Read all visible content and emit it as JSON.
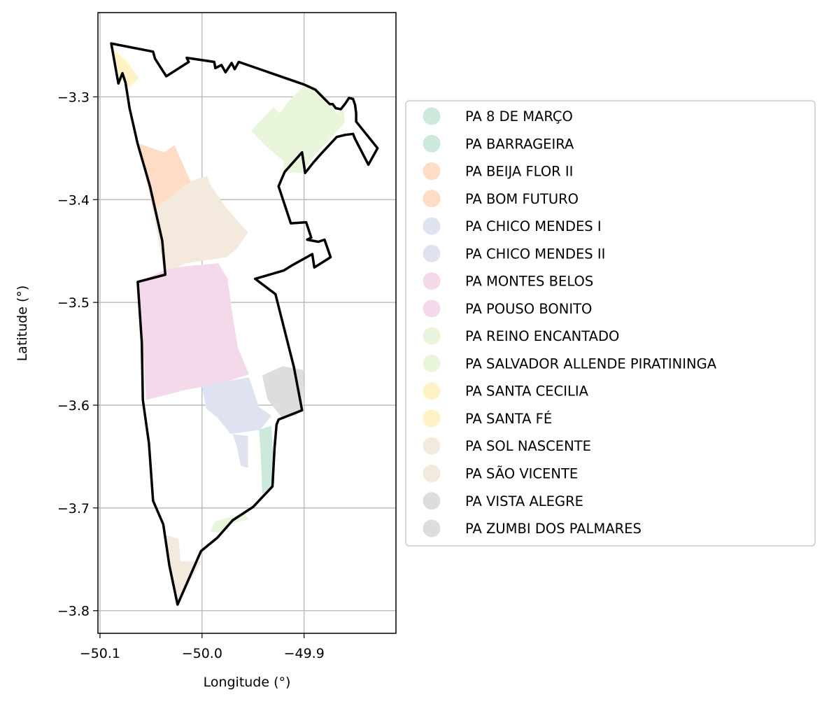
{
  "chart_data": {
    "type": "map",
    "xlabel": "Longitude (°)",
    "ylabel": "Latitude (°)",
    "xlim": [
      -50.102,
      -49.81
    ],
    "ylim": [
      -3.822,
      -3.218
    ],
    "x_ticks": [
      -50.1,
      -50.0,
      -49.9
    ],
    "x_tick_labels": [
      "−50.1",
      "−50.0",
      "−49.9"
    ],
    "y_ticks": [
      -3.3,
      -3.4,
      -3.5,
      -3.6,
      -3.7,
      -3.8
    ],
    "y_tick_labels": [
      "−3.3",
      "−3.4",
      "−3.5",
      "−3.6",
      "−3.7",
      "−3.8"
    ],
    "grid": true,
    "legend_position": "right",
    "legend": [
      {
        "label": "PA 8 DE MARÇO",
        "color": "#cce9dc"
      },
      {
        "label": "PA BARRAGEIRA",
        "color": "#cce9dc"
      },
      {
        "label": "PA BEIJA FLOR II",
        "color": "#fedcc6"
      },
      {
        "label": "PA BOM FUTURO",
        "color": "#fedcc6"
      },
      {
        "label": "PA CHICO MENDES I",
        "color": "#dfe3f1"
      },
      {
        "label": "PA CHICO MENDES II",
        "color": "#dfe3f1"
      },
      {
        "label": "PA MONTES BELOS",
        "color": "#f4d9eb"
      },
      {
        "label": "PA POUSO BONITO",
        "color": "#f4d9eb"
      },
      {
        "label": "PA REINO ENCANTADO",
        "color": "#eaf6dc"
      },
      {
        "label": "PA SALVADOR ALLENDE PIRATININGA",
        "color": "#eaf6dc"
      },
      {
        "label": "PA SANTA CECILIA",
        "color": "#fff3c6"
      },
      {
        "label": "PA SANTA FÉ",
        "color": "#fff3c6"
      },
      {
        "label": "PA SOL NASCENTE",
        "color": "#f3e9dc"
      },
      {
        "label": "PA SÃO VICENTE",
        "color": "#f3e9dc"
      },
      {
        "label": "PA VISTA ALEGRE",
        "color": "#dddddd"
      },
      {
        "label": "PA ZUMBI DOS PALMARES",
        "color": "#dddddd"
      }
    ],
    "boundary": [
      [
        -50.089,
        -3.248
      ],
      [
        -50.048,
        -3.256
      ],
      [
        -50.046,
        -3.263
      ],
      [
        -50.035,
        -3.28
      ],
      [
        -50.013,
        -3.266
      ],
      [
        -50.015,
        -3.262
      ],
      [
        -49.988,
        -3.266
      ],
      [
        -49.987,
        -3.272
      ],
      [
        -49.981,
        -3.269
      ],
      [
        -49.977,
        -3.276
      ],
      [
        -49.971,
        -3.267
      ],
      [
        -49.968,
        -3.273
      ],
      [
        -49.964,
        -3.266
      ],
      [
        -49.9,
        -3.288
      ],
      [
        -49.889,
        -3.293
      ],
      [
        -49.875,
        -3.307
      ],
      [
        -49.872,
        -3.307
      ],
      [
        -49.869,
        -3.311
      ],
      [
        -49.864,
        -3.312
      ],
      [
        -49.86,
        -3.307
      ],
      [
        -49.856,
        -3.301
      ],
      [
        -49.852,
        -3.302
      ],
      [
        -49.85,
        -3.308
      ],
      [
        -49.849,
        -3.316
      ],
      [
        -49.849,
        -3.324
      ],
      [
        -49.828,
        -3.35
      ],
      [
        -49.837,
        -3.366
      ],
      [
        -49.85,
        -3.341
      ],
      [
        -49.852,
        -3.336
      ],
      [
        -49.86,
        -3.337
      ],
      [
        -49.868,
        -3.339
      ],
      [
        -49.883,
        -3.355
      ],
      [
        -49.891,
        -3.364
      ],
      [
        -49.899,
        -3.374
      ],
      [
        -49.902,
        -3.354
      ],
      [
        -49.919,
        -3.373
      ],
      [
        -49.925,
        -3.387
      ],
      [
        -49.913,
        -3.423
      ],
      [
        -49.898,
        -3.422
      ],
      [
        -49.893,
        -3.437
      ],
      [
        -49.897,
        -3.439
      ],
      [
        -49.886,
        -3.441
      ],
      [
        -49.88,
        -3.439
      ],
      [
        -49.874,
        -3.456
      ],
      [
        -49.89,
        -3.466
      ],
      [
        -49.892,
        -3.453
      ],
      [
        -49.912,
        -3.464
      ],
      [
        -49.92,
        -3.469
      ],
      [
        -49.948,
        -3.477
      ],
      [
        -49.928,
        -3.492
      ],
      [
        -49.91,
        -3.563
      ],
      [
        -49.902,
        -3.605
      ],
      [
        -49.925,
        -3.614
      ],
      [
        -49.927,
        -3.619
      ],
      [
        -49.929,
        -3.642
      ],
      [
        -49.931,
        -3.679
      ],
      [
        -49.95,
        -3.699
      ],
      [
        -49.97,
        -3.712
      ],
      [
        -49.985,
        -3.729
      ],
      [
        -50.001,
        -3.742
      ],
      [
        -50.024,
        -3.794
      ],
      [
        -50.032,
        -3.756
      ],
      [
        -50.038,
        -3.716
      ],
      [
        -50.048,
        -3.693
      ],
      [
        -50.052,
        -3.637
      ],
      [
        -50.058,
        -3.595
      ],
      [
        -50.059,
        -3.539
      ],
      [
        -50.063,
        -3.48
      ],
      [
        -50.036,
        -3.473
      ],
      [
        -50.039,
        -3.44
      ],
      [
        -50.051,
        -3.387
      ],
      [
        -50.063,
        -3.346
      ],
      [
        -50.071,
        -3.311
      ],
      [
        -50.075,
        -3.286
      ],
      [
        -50.078,
        -3.277
      ],
      [
        -50.082,
        -3.287
      ],
      [
        -50.089,
        -3.248
      ]
    ],
    "regions": [
      {
        "label": "PA SANTA FÉ",
        "color": "#fff3c6",
        "coords": [
          [
            -50.087,
            -3.254
          ],
          [
            -50.073,
            -3.266
          ],
          [
            -50.062,
            -3.282
          ],
          [
            -50.072,
            -3.291
          ],
          [
            -50.081,
            -3.282
          ],
          [
            -50.087,
            -3.254
          ]
        ]
      },
      {
        "label": "PA SALVADOR ALLENDE PIRATININGA",
        "color": "#eaf6dc",
        "coords": [
          [
            -49.899,
            -3.287
          ],
          [
            -49.888,
            -3.291
          ],
          [
            -49.874,
            -3.306
          ],
          [
            -49.868,
            -3.316
          ],
          [
            -49.862,
            -3.311
          ],
          [
            -49.861,
            -3.314
          ],
          [
            -49.86,
            -3.325
          ],
          [
            -49.872,
            -3.338
          ],
          [
            -49.89,
            -3.357
          ],
          [
            -49.902,
            -3.374
          ],
          [
            -49.92,
            -3.373
          ],
          [
            -49.92,
            -3.363
          ],
          [
            -49.935,
            -3.35
          ],
          [
            -49.952,
            -3.333
          ],
          [
            -49.93,
            -3.31
          ],
          [
            -49.924,
            -3.316
          ],
          [
            -49.916,
            -3.305
          ],
          [
            -49.904,
            -3.293
          ],
          [
            -49.899,
            -3.287
          ]
        ]
      },
      {
        "label": "PA BOM FUTURO",
        "color": "#fedcc6",
        "coords": [
          [
            -50.063,
            -3.345
          ],
          [
            -50.037,
            -3.354
          ],
          [
            -50.027,
            -3.347
          ],
          [
            -50.01,
            -3.385
          ],
          [
            -50.046,
            -3.42
          ],
          [
            -50.052,
            -3.392
          ],
          [
            -50.063,
            -3.345
          ]
        ]
      },
      {
        "label": "PA SOL NASCENTE",
        "color": "#f3e9dc",
        "coords": [
          [
            -50.048,
            -3.41
          ],
          [
            -50.011,
            -3.382
          ],
          [
            -49.995,
            -3.377
          ],
          [
            -49.991,
            -3.387
          ],
          [
            -49.977,
            -3.407
          ],
          [
            -49.955,
            -3.432
          ],
          [
            -49.966,
            -3.448
          ],
          [
            -49.976,
            -3.456
          ],
          [
            -50.016,
            -3.462
          ],
          [
            -50.037,
            -3.472
          ],
          [
            -50.048,
            -3.41
          ]
        ]
      },
      {
        "label": "PA MONTES BELOS",
        "color": "#f4d9eb",
        "coords": [
          [
            -50.062,
            -3.48
          ],
          [
            -50.038,
            -3.469
          ],
          [
            -50.019,
            -3.465
          ],
          [
            -49.984,
            -3.462
          ],
          [
            -49.975,
            -3.477
          ],
          [
            -49.97,
            -3.513
          ],
          [
            -49.965,
            -3.544
          ],
          [
            -49.954,
            -3.57
          ],
          [
            -49.982,
            -3.579
          ],
          [
            -49.998,
            -3.582
          ],
          [
            -50.016,
            -3.585
          ],
          [
            -50.055,
            -3.595
          ],
          [
            -50.058,
            -3.54
          ],
          [
            -50.062,
            -3.48
          ]
        ]
      },
      {
        "label": "PA CHICO MENDES I",
        "color": "#dfe3f1",
        "coords": [
          [
            -50.0,
            -3.582
          ],
          [
            -49.984,
            -3.578
          ],
          [
            -49.954,
            -3.573
          ],
          [
            -49.944,
            -3.602
          ],
          [
            -49.932,
            -3.61
          ],
          [
            -49.943,
            -3.624
          ],
          [
            -49.958,
            -3.626
          ],
          [
            -49.972,
            -3.628
          ],
          [
            -49.985,
            -3.612
          ],
          [
            -49.996,
            -3.603
          ],
          [
            -50.0,
            -3.582
          ]
        ]
      },
      {
        "label": "PA CHICO MENDES II",
        "color": "#dfe3f1",
        "coords": [
          [
            -49.97,
            -3.628
          ],
          [
            -49.966,
            -3.64
          ],
          [
            -49.962,
            -3.659
          ],
          [
            -49.955,
            -3.661
          ],
          [
            -49.955,
            -3.63
          ],
          [
            -49.97,
            -3.628
          ]
        ]
      },
      {
        "label": "PA VISTA ALEGRE",
        "color": "#dddddd",
        "coords": [
          [
            -49.921,
            -3.562
          ],
          [
            -49.9,
            -3.566
          ],
          [
            -49.902,
            -3.604
          ],
          [
            -49.908,
            -3.61
          ],
          [
            -49.922,
            -3.612
          ],
          [
            -49.936,
            -3.594
          ],
          [
            -49.941,
            -3.571
          ],
          [
            -49.921,
            -3.562
          ]
        ]
      },
      {
        "label": "PA BARRAGEIRA",
        "color": "#cce9dc",
        "coords": [
          [
            -49.944,
            -3.624
          ],
          [
            -49.932,
            -3.62
          ],
          [
            -49.929,
            -3.675
          ],
          [
            -49.941,
            -3.687
          ],
          [
            -49.942,
            -3.658
          ],
          [
            -49.944,
            -3.624
          ]
        ]
      },
      {
        "label": "PA REINO ENCANTADO",
        "color": "#eaf6dc",
        "coords": [
          [
            -49.987,
            -3.713
          ],
          [
            -49.959,
            -3.705
          ],
          [
            -49.954,
            -3.711
          ],
          [
            -49.97,
            -3.715
          ],
          [
            -49.984,
            -3.724
          ],
          [
            -49.992,
            -3.723
          ],
          [
            -49.987,
            -3.713
          ]
        ]
      },
      {
        "label": "PA SÃO VICENTE",
        "color": "#f3e9dc",
        "coords": [
          [
            -50.037,
            -3.726
          ],
          [
            -50.023,
            -3.73
          ],
          [
            -50.021,
            -3.752
          ],
          [
            -50.001,
            -3.752
          ],
          [
            -50.024,
            -3.794
          ],
          [
            -50.032,
            -3.756
          ],
          [
            -50.037,
            -3.726
          ]
        ]
      }
    ]
  }
}
